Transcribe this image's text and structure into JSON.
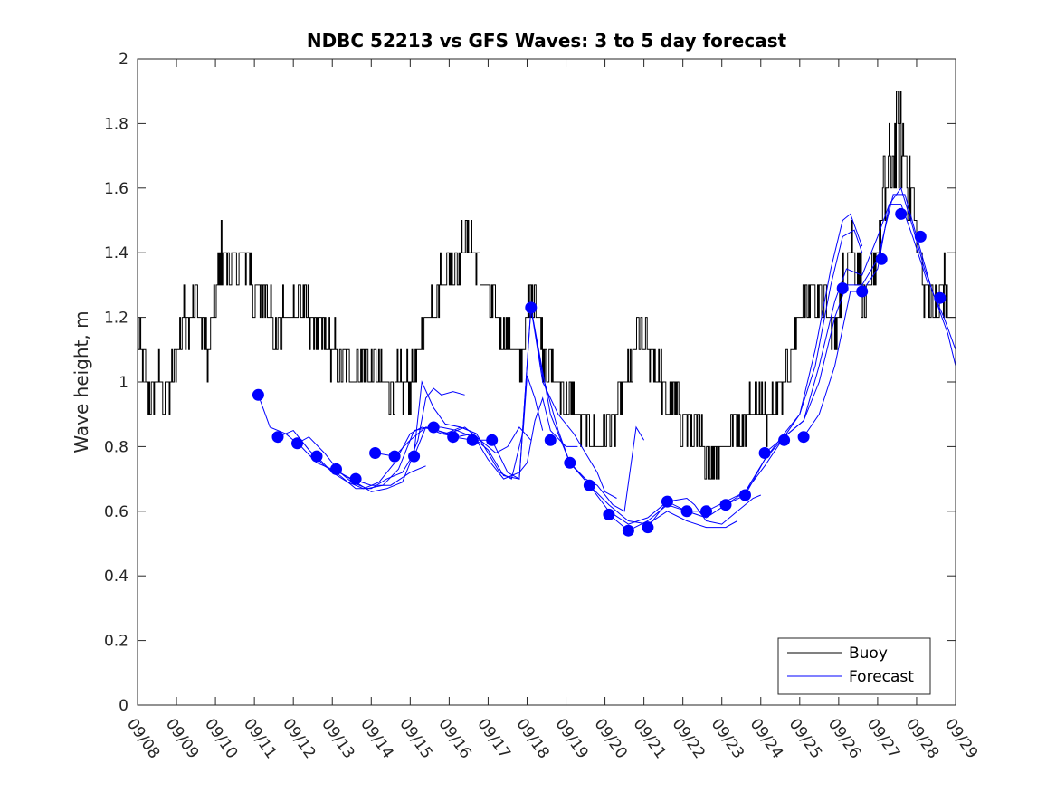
{
  "chart_data": {
    "type": "line",
    "title": "NDBC 52213 vs GFS Waves: 3 to 5 day forecast",
    "xlabel": "",
    "ylabel": "Wave height, m",
    "xlim": [
      0,
      21
    ],
    "ylim": [
      0,
      2
    ],
    "x_tick_labels": [
      "09/08",
      "09/09",
      "09/10",
      "09/11",
      "09/12",
      "09/13",
      "09/14",
      "09/15",
      "09/16",
      "09/17",
      "09/18",
      "09/19",
      "09/20",
      "09/21",
      "09/22",
      "09/23",
      "09/24",
      "09/25",
      "09/26",
      "09/27",
      "09/28",
      "09/29"
    ],
    "y_tick_labels": [
      "0",
      "0.2",
      "0.4",
      "0.6",
      "0.8",
      "1",
      "1.2",
      "1.4",
      "1.6",
      "1.8",
      "2"
    ],
    "y_ticks": [
      0,
      0.2,
      0.4,
      0.6,
      0.8,
      1.0,
      1.2,
      1.4,
      1.6,
      1.8,
      2.0
    ],
    "legend": [
      "Buoy",
      "Forecast"
    ],
    "legend_location": "bottom-right",
    "colors": {
      "buoy": "#000000",
      "forecast": "#0000ff"
    },
    "buoy_keypoints": [
      [
        0.0,
        1.15
      ],
      [
        0.1,
        1.05
      ],
      [
        0.25,
        1.0
      ],
      [
        0.4,
        0.95
      ],
      [
        0.55,
        1.0
      ],
      [
        0.8,
        0.95
      ],
      [
        1.0,
        1.1
      ],
      [
        1.2,
        1.2
      ],
      [
        1.5,
        1.25
      ],
      [
        1.8,
        1.1
      ],
      [
        2.0,
        1.25
      ],
      [
        2.15,
        1.4
      ],
      [
        2.4,
        1.35
      ],
      [
        2.8,
        1.4
      ],
      [
        3.0,
        1.25
      ],
      [
        3.3,
        1.3
      ],
      [
        3.5,
        1.15
      ],
      [
        3.8,
        1.2
      ],
      [
        4.2,
        1.25
      ],
      [
        4.4,
        1.2
      ],
      [
        4.7,
        1.15
      ],
      [
        5.0,
        1.1
      ],
      [
        5.4,
        1.05
      ],
      [
        5.8,
        1.05
      ],
      [
        6.2,
        1.0
      ],
      [
        6.6,
        0.98
      ],
      [
        7.0,
        1.0
      ],
      [
        7.2,
        1.05
      ],
      [
        7.4,
        1.2
      ],
      [
        7.7,
        1.3
      ],
      [
        8.0,
        1.35
      ],
      [
        8.3,
        1.4
      ],
      [
        8.6,
        1.45
      ],
      [
        8.9,
        1.3
      ],
      [
        9.2,
        1.2
      ],
      [
        9.5,
        1.15
      ],
      [
        9.8,
        1.05
      ],
      [
        10.0,
        1.2
      ],
      [
        10.2,
        1.3
      ],
      [
        10.4,
        1.1
      ],
      [
        10.7,
        1.0
      ],
      [
        11.0,
        0.95
      ],
      [
        11.3,
        0.9
      ],
      [
        11.6,
        0.85
      ],
      [
        11.8,
        0.8
      ],
      [
        12.0,
        0.85
      ],
      [
        12.3,
        0.9
      ],
      [
        12.5,
        0.95
      ],
      [
        12.7,
        1.05
      ],
      [
        12.9,
        1.15
      ],
      [
        13.1,
        1.1
      ],
      [
        13.3,
        1.05
      ],
      [
        13.6,
        0.95
      ],
      [
        13.9,
        0.9
      ],
      [
        14.2,
        0.85
      ],
      [
        14.5,
        0.8
      ],
      [
        14.7,
        0.75
      ],
      [
        15.0,
        0.8
      ],
      [
        15.3,
        0.85
      ],
      [
        15.6,
        0.9
      ],
      [
        15.9,
        0.95
      ],
      [
        16.1,
        0.9
      ],
      [
        16.4,
        0.95
      ],
      [
        16.7,
        1.05
      ],
      [
        17.0,
        1.2
      ],
      [
        17.3,
        1.3
      ],
      [
        17.6,
        1.25
      ],
      [
        17.9,
        1.15
      ],
      [
        18.1,
        1.3
      ],
      [
        18.3,
        1.45
      ],
      [
        18.5,
        1.35
      ],
      [
        18.7,
        1.2
      ],
      [
        18.9,
        1.35
      ],
      [
        19.1,
        1.5
      ],
      [
        19.3,
        1.65
      ],
      [
        19.5,
        1.75
      ],
      [
        19.7,
        1.7
      ],
      [
        19.9,
        1.55
      ],
      [
        20.1,
        1.35
      ],
      [
        20.3,
        1.25
      ],
      [
        20.5,
        1.2
      ],
      [
        20.7,
        1.3
      ],
      [
        20.85,
        1.2
      ],
      [
        21.0,
        1.2
      ]
    ],
    "forecast_markers": [
      [
        3.1,
        0.96
      ],
      [
        3.6,
        0.83
      ],
      [
        4.1,
        0.81
      ],
      [
        4.6,
        0.77
      ],
      [
        5.1,
        0.73
      ],
      [
        5.6,
        0.7
      ],
      [
        6.1,
        0.78
      ],
      [
        6.6,
        0.77
      ],
      [
        7.1,
        0.77
      ],
      [
        7.6,
        0.86
      ],
      [
        8.1,
        0.83
      ],
      [
        8.6,
        0.82
      ],
      [
        9.1,
        0.82
      ],
      [
        10.1,
        1.23
      ],
      [
        10.6,
        0.82
      ],
      [
        11.1,
        0.75
      ],
      [
        11.6,
        0.68
      ],
      [
        12.1,
        0.59
      ],
      [
        12.6,
        0.54
      ],
      [
        13.1,
        0.55
      ],
      [
        13.6,
        0.63
      ],
      [
        14.1,
        0.6
      ],
      [
        14.6,
        0.6
      ],
      [
        15.1,
        0.62
      ],
      [
        15.6,
        0.65
      ],
      [
        16.1,
        0.78
      ],
      [
        16.6,
        0.82
      ],
      [
        17.1,
        0.83
      ],
      [
        18.1,
        1.29
      ],
      [
        18.6,
        1.28
      ],
      [
        19.1,
        1.38
      ],
      [
        19.6,
        1.52
      ],
      [
        20.1,
        1.45
      ],
      [
        20.6,
        1.26
      ]
    ],
    "forecast_runs": [
      [
        [
          3.1,
          0.96
        ],
        [
          3.4,
          0.86
        ],
        [
          3.8,
          0.84
        ],
        [
          4.2,
          0.8
        ],
        [
          4.6,
          0.75
        ],
        [
          5.0,
          0.73
        ],
        [
          5.5,
          0.7
        ],
        [
          6.0,
          0.68
        ],
        [
          6.5,
          0.68
        ],
        [
          7.0,
          0.72
        ],
        [
          7.4,
          0.74
        ]
      ],
      [
        [
          3.6,
          0.83
        ],
        [
          4.0,
          0.85
        ],
        [
          4.4,
          0.79
        ],
        [
          4.8,
          0.74
        ],
        [
          5.2,
          0.71
        ],
        [
          5.6,
          0.67
        ],
        [
          6.0,
          0.67
        ],
        [
          6.4,
          0.7
        ],
        [
          6.8,
          0.72
        ],
        [
          7.0,
          0.76
        ],
        [
          7.2,
          0.82
        ],
        [
          7.4,
          0.95
        ],
        [
          7.6,
          0.98
        ],
        [
          7.8,
          0.96
        ],
        [
          8.1,
          0.97
        ],
        [
          8.4,
          0.96
        ]
      ],
      [
        [
          4.1,
          0.81
        ],
        [
          4.4,
          0.83
        ],
        [
          4.8,
          0.78
        ],
        [
          5.2,
          0.72
        ],
        [
          5.6,
          0.69
        ],
        [
          6.0,
          0.66
        ],
        [
          6.4,
          0.67
        ],
        [
          6.8,
          0.69
        ],
        [
          7.1,
          0.78
        ],
        [
          7.3,
          1.0
        ],
        [
          7.6,
          0.92
        ],
        [
          7.9,
          0.87
        ],
        [
          8.3,
          0.86
        ],
        [
          8.7,
          0.84
        ]
      ],
      [
        [
          4.6,
          0.77
        ],
        [
          5.0,
          0.72
        ],
        [
          5.4,
          0.69
        ],
        [
          5.8,
          0.67
        ],
        [
          6.2,
          0.69
        ],
        [
          6.6,
          0.75
        ],
        [
          7.0,
          0.84
        ],
        [
          7.3,
          0.86
        ],
        [
          7.7,
          0.85
        ],
        [
          8.0,
          0.84
        ],
        [
          8.4,
          0.86
        ],
        [
          8.8,
          0.82
        ],
        [
          9.2,
          0.78
        ],
        [
          9.5,
          0.8
        ],
        [
          9.8,
          0.86
        ],
        [
          10.1,
          0.82
        ]
      ],
      [
        [
          5.1,
          0.73
        ],
        [
          5.5,
          0.69
        ],
        [
          5.9,
          0.67
        ],
        [
          6.3,
          0.68
        ],
        [
          6.7,
          0.73
        ],
        [
          7.1,
          0.85
        ],
        [
          7.5,
          0.86
        ],
        [
          7.9,
          0.84
        ],
        [
          8.3,
          0.86
        ],
        [
          8.7,
          0.84
        ],
        [
          9.0,
          0.78
        ],
        [
          9.3,
          0.72
        ],
        [
          9.6,
          0.7
        ],
        [
          9.9,
          0.85
        ],
        [
          10.0,
          1.02
        ],
        [
          10.2,
          0.95
        ],
        [
          10.4,
          0.85
        ]
      ],
      [
        [
          6.1,
          0.78
        ],
        [
          6.6,
          0.77
        ],
        [
          7.0,
          0.82
        ],
        [
          7.4,
          0.86
        ],
        [
          7.8,
          0.84
        ],
        [
          8.2,
          0.83
        ],
        [
          8.6,
          0.84
        ],
        [
          9.0,
          0.76
        ],
        [
          9.4,
          0.7
        ],
        [
          9.8,
          0.72
        ],
        [
          10.0,
          0.75
        ],
        [
          10.2,
          0.88
        ],
        [
          10.4,
          0.95
        ],
        [
          10.6,
          0.85
        ],
        [
          11.0,
          0.8
        ],
        [
          11.3,
          0.8
        ]
      ],
      [
        [
          7.1,
          0.77
        ],
        [
          7.4,
          0.86
        ],
        [
          7.8,
          0.86
        ],
        [
          8.2,
          0.85
        ],
        [
          8.6,
          0.83
        ],
        [
          9.0,
          0.79
        ],
        [
          9.4,
          0.71
        ],
        [
          9.8,
          0.7
        ],
        [
          10.1,
          1.23
        ],
        [
          10.4,
          1.0
        ],
        [
          10.8,
          0.9
        ],
        [
          11.2,
          0.84
        ],
        [
          11.5,
          0.78
        ],
        [
          11.8,
          0.72
        ],
        [
          12.0,
          0.66
        ],
        [
          12.3,
          0.64
        ]
      ],
      [
        [
          8.1,
          0.83
        ],
        [
          8.6,
          0.82
        ],
        [
          9.1,
          0.82
        ],
        [
          9.5,
          0.72
        ],
        [
          9.8,
          0.7
        ],
        [
          10.1,
          1.23
        ],
        [
          10.4,
          1.02
        ],
        [
          10.8,
          0.85
        ],
        [
          11.1,
          0.75
        ],
        [
          11.5,
          0.7
        ],
        [
          11.8,
          0.68
        ],
        [
          12.2,
          0.62
        ],
        [
          12.5,
          0.6
        ],
        [
          12.8,
          0.86
        ],
        [
          13.0,
          0.82
        ]
      ],
      [
        [
          10.1,
          1.23
        ],
        [
          10.6,
          0.9
        ],
        [
          11.1,
          0.75
        ],
        [
          11.6,
          0.68
        ],
        [
          12.1,
          0.62
        ],
        [
          12.6,
          0.57
        ],
        [
          13.1,
          0.56
        ],
        [
          13.6,
          0.6
        ],
        [
          14.1,
          0.57
        ],
        [
          14.6,
          0.55
        ],
        [
          15.1,
          0.55
        ],
        [
          15.4,
          0.57
        ]
      ],
      [
        [
          11.1,
          0.75
        ],
        [
          11.6,
          0.68
        ],
        [
          12.1,
          0.6
        ],
        [
          12.6,
          0.56
        ],
        [
          13.1,
          0.58
        ],
        [
          13.6,
          0.63
        ],
        [
          14.1,
          0.64
        ],
        [
          14.3,
          0.62
        ],
        [
          14.6,
          0.57
        ],
        [
          15.0,
          0.56
        ],
        [
          15.4,
          0.6
        ],
        [
          15.8,
          0.64
        ],
        [
          16.0,
          0.65
        ]
      ],
      [
        [
          12.1,
          0.59
        ],
        [
          12.6,
          0.54
        ],
        [
          13.1,
          0.57
        ],
        [
          13.6,
          0.62
        ],
        [
          14.1,
          0.6
        ],
        [
          14.6,
          0.58
        ],
        [
          15.1,
          0.62
        ],
        [
          15.6,
          0.66
        ],
        [
          16.1,
          0.74
        ],
        [
          16.6,
          0.83
        ],
        [
          17.0,
          0.9
        ],
        [
          17.4,
          1.05
        ],
        [
          17.8,
          1.3
        ],
        [
          18.1,
          1.45
        ],
        [
          18.4,
          1.47
        ],
        [
          18.6,
          1.4
        ]
      ],
      [
        [
          13.1,
          0.55
        ],
        [
          13.6,
          0.63
        ],
        [
          14.1,
          0.6
        ],
        [
          14.6,
          0.6
        ],
        [
          15.1,
          0.63
        ],
        [
          15.6,
          0.66
        ],
        [
          16.1,
          0.76
        ],
        [
          16.6,
          0.84
        ],
        [
          17.0,
          0.9
        ],
        [
          17.4,
          1.1
        ],
        [
          17.8,
          1.35
        ],
        [
          18.1,
          1.5
        ],
        [
          18.3,
          1.52
        ],
        [
          18.6,
          1.42
        ]
      ],
      [
        [
          15.1,
          0.62
        ],
        [
          15.6,
          0.65
        ],
        [
          16.1,
          0.76
        ],
        [
          16.6,
          0.83
        ],
        [
          17.1,
          0.88
        ],
        [
          17.5,
          1.05
        ],
        [
          17.9,
          1.25
        ],
        [
          18.2,
          1.35
        ],
        [
          18.6,
          1.33
        ],
        [
          19.0,
          1.45
        ],
        [
          19.3,
          1.55
        ],
        [
          19.6,
          1.55
        ],
        [
          19.9,
          1.45
        ],
        [
          20.3,
          1.3
        ]
      ],
      [
        [
          16.1,
          0.78
        ],
        [
          16.6,
          0.83
        ],
        [
          17.1,
          0.88
        ],
        [
          17.5,
          1.0
        ],
        [
          17.9,
          1.2
        ],
        [
          18.2,
          1.3
        ],
        [
          18.6,
          1.3
        ],
        [
          19.0,
          1.38
        ],
        [
          19.4,
          1.58
        ],
        [
          19.7,
          1.58
        ],
        [
          20.0,
          1.45
        ],
        [
          20.4,
          1.28
        ],
        [
          20.7,
          1.2
        ],
        [
          21.0,
          1.1
        ]
      ],
      [
        [
          17.1,
          0.83
        ],
        [
          17.5,
          0.9
        ],
        [
          17.9,
          1.05
        ],
        [
          18.3,
          1.28
        ],
        [
          18.6,
          1.28
        ],
        [
          19.0,
          1.35
        ],
        [
          19.3,
          1.55
        ],
        [
          19.6,
          1.6
        ],
        [
          19.9,
          1.48
        ],
        [
          20.2,
          1.35
        ],
        [
          20.5,
          1.25
        ],
        [
          20.8,
          1.15
        ],
        [
          21.0,
          1.05
        ]
      ]
    ]
  }
}
